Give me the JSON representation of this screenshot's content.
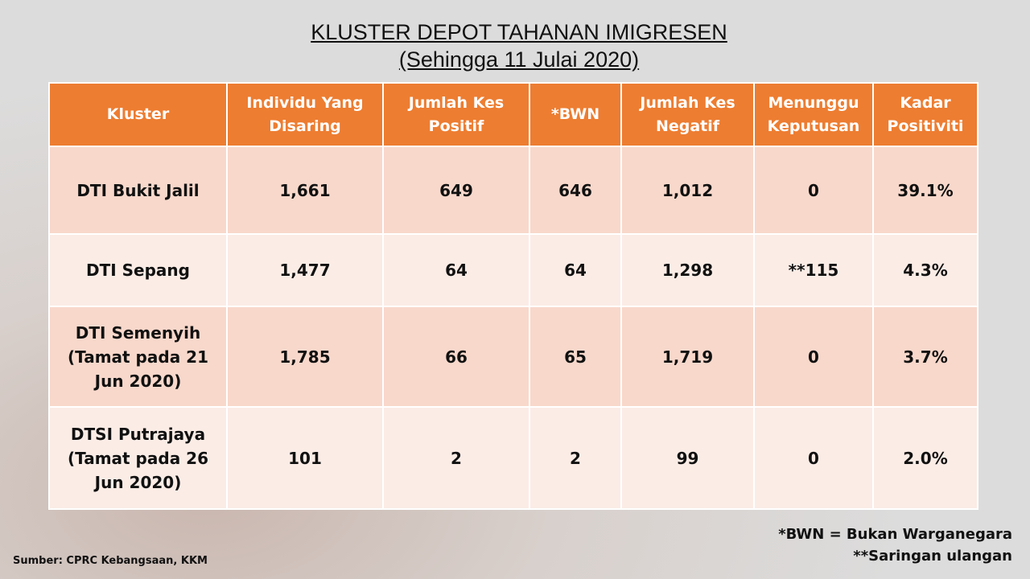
{
  "header": {
    "title": "KLUSTER DEPOT TAHANAN IMIGRESEN",
    "subtitle": "(Sehingga 11 Julai 2020)"
  },
  "table": {
    "columns": [
      "Kluster",
      "Individu Yang Disaring",
      "Jumlah Kes Positif",
      "*BWN",
      "Jumlah Kes Negatif",
      "Menunggu Keputusan",
      "Kadar Positiviti"
    ],
    "rows": [
      [
        "DTI Bukit Jalil",
        "1,661",
        "649",
        "646",
        "1,012",
        "0",
        "39.1%"
      ],
      [
        "DTI Sepang",
        "1,477",
        "64",
        "64",
        "1,298",
        "**115",
        "4.3%"
      ],
      [
        "DTI Semenyih (Tamat pada 21 Jun 2020)",
        "1,785",
        "66",
        "65",
        "1,719",
        "0",
        "3.7%"
      ],
      [
        "DTSI Putrajaya (Tamat pada 26 Jun 2020)",
        "101",
        "2",
        "2",
        "99",
        "0",
        "2.0%"
      ]
    ]
  },
  "footnotes": [
    "*BWN = Bukan Warganegara",
    "**Saringan ulangan"
  ],
  "source": "Sumber: CPRC Kebangsaan, KKM"
}
